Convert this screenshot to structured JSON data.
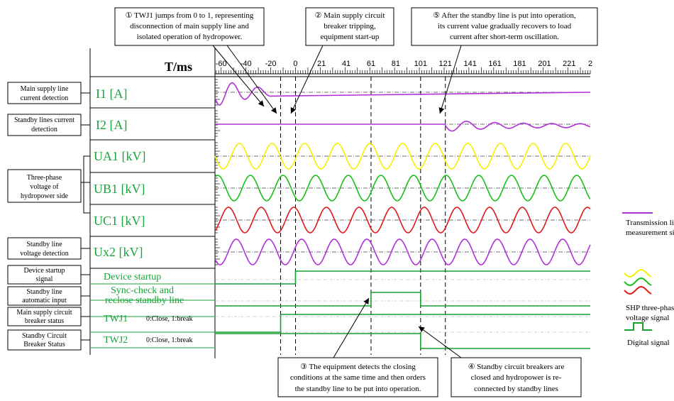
{
  "colors": {
    "magenta": "#b030d8",
    "yellow": "#f4f000",
    "green": "#18c018",
    "red": "#e01818",
    "digital": "#16a030",
    "label": "#1aa33a"
  },
  "callouts": [
    {
      "lines": [
        "① TWJ1 jumps from 0 to 1, representing",
        "disconnection of main supply line and",
        "isolated operation of hydropower."
      ]
    },
    {
      "lines": [
        "② Main supply circuit",
        "breaker tripping,",
        "equipment start-up"
      ]
    },
    {
      "lines": [
        "⑤ After the standby line is put into operation,",
        "its current value gradually recovers to load",
        "current after short-term oscillation."
      ]
    },
    {
      "lines": [
        "③ The equipment detects the closing",
        "conditions at the same time and then orders",
        "the standby line to be put into operation."
      ]
    },
    {
      "lines": [
        "④ Standby circuit breakers are",
        "closed and hydropower is re-",
        "connected by standby lines"
      ]
    }
  ],
  "left_labels": [
    {
      "lines": [
        "Main supply line",
        "current detection"
      ]
    },
    {
      "lines": [
        "Standby lines current",
        "detection"
      ]
    },
    {
      "lines": [
        "Three-phase",
        "voltage of",
        "hydropower side"
      ]
    },
    {
      "lines": [
        "Standby line",
        "voltage detection"
      ]
    },
    {
      "lines": [
        "Device startup",
        "signal"
      ]
    },
    {
      "lines": [
        "Standby line",
        "automatic input"
      ]
    },
    {
      "lines": [
        "Main supply circuit",
        "breaker status"
      ]
    },
    {
      "lines": [
        "Standby Circuit",
        "Breaker Status"
      ]
    }
  ],
  "legend": {
    "transmission": [
      "Transmission line",
      "measurement signal"
    ],
    "three_phase": [
      "SHP three-phase",
      "voltage signal"
    ],
    "digital": [
      "Digital signal"
    ]
  },
  "chart_data": {
    "type": "line",
    "x_axis_title": "T/ms",
    "x_tick_labels": [
      "-60",
      "-40",
      "-20",
      "0",
      "21",
      "41",
      "61",
      "81",
      "101",
      "121",
      "141",
      "161",
      "181",
      "201",
      "221",
      "2"
    ],
    "xlim": [
      -65,
      238
    ],
    "event_markers_ms": [
      -12,
      0,
      61,
      101,
      121
    ],
    "channels": [
      {
        "label": "I1 [A]",
        "kind": "analog",
        "color": "magenta",
        "description_label": 0,
        "segments": [
          {
            "from": -65,
            "to": -20,
            "waveform": "decaying-sine"
          },
          {
            "from": -20,
            "to": 238,
            "level": "flat"
          }
        ]
      },
      {
        "label": "I2 [A]",
        "kind": "analog",
        "color": "magenta",
        "description_label": 1,
        "segments": [
          {
            "from": -65,
            "to": 121,
            "level": "flat"
          },
          {
            "from": 121,
            "to": 238,
            "waveform": "small-oscillation"
          }
        ]
      },
      {
        "label": "UA1 [kV]",
        "kind": "analog",
        "color": "yellow",
        "description_label": 2,
        "waveform": "sine"
      },
      {
        "label": "UB1 [kV]",
        "kind": "analog",
        "color": "green",
        "description_label": 2,
        "waveform": "sine"
      },
      {
        "label": "UC1 [kV]",
        "kind": "analog",
        "color": "red",
        "description_label": 2,
        "waveform": "sine"
      },
      {
        "label": "Ux2 [kV]",
        "kind": "analog",
        "color": "magenta",
        "description_label": 3,
        "waveform": "sine"
      },
      {
        "label": "Device startup",
        "kind": "digital",
        "description_label": 4,
        "high_from": 0,
        "high_to": 238
      },
      {
        "label": "Sync-check and reclose  standby line",
        "label_lines": [
          "Sync-check and",
          "reclose  standby line"
        ],
        "kind": "digital",
        "description_label": 5,
        "high_from": 61,
        "high_to": 101
      },
      {
        "label": "TWJ1",
        "note": "0:Close, 1:break",
        "kind": "digital",
        "description_label": 6,
        "high_from": -12,
        "high_to": 238
      },
      {
        "label": "TWJ2",
        "note": "0:Close, 1:break",
        "kind": "digital",
        "description_label": 7,
        "high_from": -65,
        "high_to": 101
      }
    ]
  }
}
